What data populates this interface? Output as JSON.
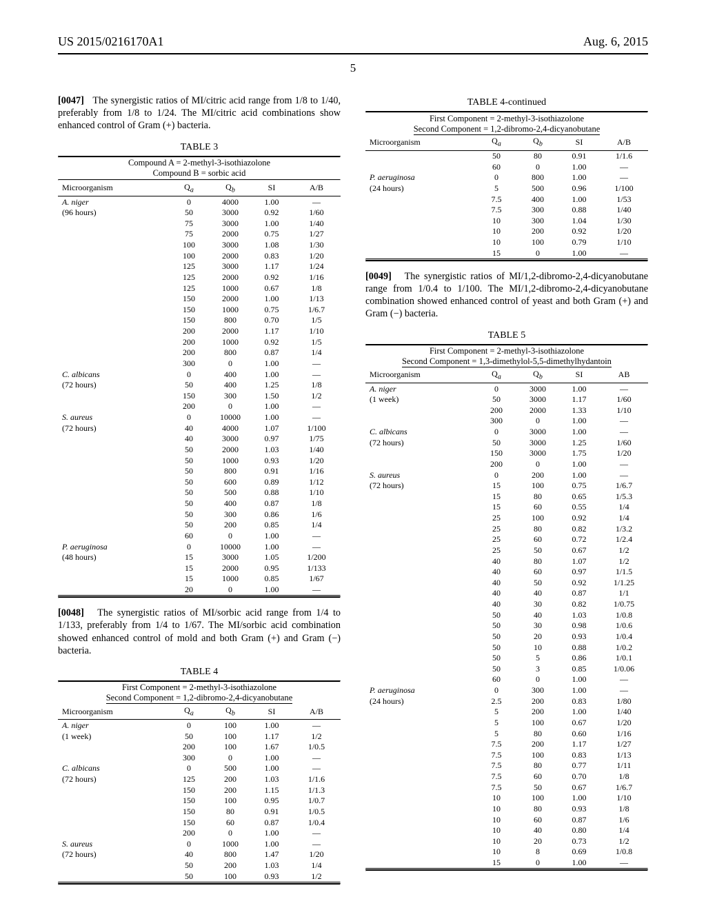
{
  "header": {
    "left": "US 2015/0216170A1",
    "right": "Aug. 6, 2015",
    "page_number": "5"
  },
  "para47": {
    "num": "[0047]",
    "text": "The synergistic ratios of MI/citric acid range from 1/8 to 1/40, preferably from 1/8 to 1/24. The MI/citric acid combinations show enhanced control of Gram (+) bacteria."
  },
  "table3": {
    "title": "TABLE 3",
    "compA": "Compound A = 2-methyl-3-isothiazolone",
    "compB": "Compound B = sorbic acid",
    "cols": [
      "Microorganism",
      "Qₐ",
      "Q_b",
      "SI",
      "A/B"
    ],
    "groups": [
      {
        "org": "A. niger",
        "hrs": "(96 hours)",
        "rows": [
          [
            "0",
            "4000",
            "1.00",
            "—"
          ],
          [
            "50",
            "3000",
            "0.92",
            "1/60"
          ],
          [
            "75",
            "3000",
            "1.00",
            "1/40"
          ],
          [
            "75",
            "2000",
            "0.75",
            "1/27"
          ],
          [
            "100",
            "3000",
            "1.08",
            "1/30"
          ],
          [
            "100",
            "2000",
            "0.83",
            "1/20"
          ],
          [
            "125",
            "3000",
            "1.17",
            "1/24"
          ],
          [
            "125",
            "2000",
            "0.92",
            "1/16"
          ],
          [
            "125",
            "1000",
            "0.67",
            "1/8"
          ],
          [
            "150",
            "2000",
            "1.00",
            "1/13"
          ],
          [
            "150",
            "1000",
            "0.75",
            "1/6.7"
          ],
          [
            "150",
            "800",
            "0.70",
            "1/5"
          ],
          [
            "200",
            "2000",
            "1.17",
            "1/10"
          ],
          [
            "200",
            "1000",
            "0.92",
            "1/5"
          ],
          [
            "200",
            "800",
            "0.87",
            "1/4"
          ],
          [
            "300",
            "0",
            "1.00",
            "—"
          ]
        ]
      },
      {
        "org": "C. albicans",
        "hrs": "(72 hours)",
        "rows": [
          [
            "0",
            "400",
            "1.00",
            "—"
          ],
          [
            "50",
            "400",
            "1.25",
            "1/8"
          ],
          [
            "150",
            "300",
            "1.50",
            "1/2"
          ],
          [
            "200",
            "0",
            "1.00",
            "—"
          ]
        ]
      },
      {
        "org": "S. aureus",
        "hrs": "(72 hours)",
        "rows": [
          [
            "0",
            "10000",
            "1.00",
            "—"
          ],
          [
            "40",
            "4000",
            "1.07",
            "1/100"
          ],
          [
            "40",
            "3000",
            "0.97",
            "1/75"
          ],
          [
            "50",
            "2000",
            "1.03",
            "1/40"
          ],
          [
            "50",
            "1000",
            "0.93",
            "1/20"
          ],
          [
            "50",
            "800",
            "0.91",
            "1/16"
          ],
          [
            "50",
            "600",
            "0.89",
            "1/12"
          ],
          [
            "50",
            "500",
            "0.88",
            "1/10"
          ],
          [
            "50",
            "400",
            "0.87",
            "1/8"
          ],
          [
            "50",
            "300",
            "0.86",
            "1/6"
          ],
          [
            "50",
            "200",
            "0.85",
            "1/4"
          ],
          [
            "60",
            "0",
            "1.00",
            "—"
          ]
        ]
      },
      {
        "org": "P. aeruginosa",
        "hrs": "(48 hours)",
        "rows": [
          [
            "0",
            "10000",
            "1.00",
            "—"
          ],
          [
            "15",
            "3000",
            "1.05",
            "1/200"
          ],
          [
            "15",
            "2000",
            "0.95",
            "1/133"
          ],
          [
            "15",
            "1000",
            "0.85",
            "1/67"
          ],
          [
            "20",
            "0",
            "1.00",
            "—"
          ]
        ]
      }
    ]
  },
  "para48": {
    "num": "[0048]",
    "text": "The synergistic ratios of MI/sorbic acid range from 1/4 to 1/133, preferably from 1/4 to 1/67. The MI/sorbic acid combination showed enhanced control of mold and both Gram (+) and Gram (−) bacteria."
  },
  "table4": {
    "title": "TABLE 4",
    "compA": "First Component = 2-methyl-3-isothiazolone",
    "compB": "Second Component = 1,2-dibromo-2,4-dicyanobutane",
    "cols": [
      "Microorganism",
      "Qₐ",
      "Q_b",
      "SI",
      "A/B"
    ],
    "groups": [
      {
        "org": "A. niger",
        "hrs": "(1 week)",
        "rows": [
          [
            "0",
            "100",
            "1.00",
            "—"
          ],
          [
            "50",
            "100",
            "1.17",
            "1/2"
          ],
          [
            "200",
            "100",
            "1.67",
            "1/0.5"
          ],
          [
            "300",
            "0",
            "1.00",
            "—"
          ]
        ]
      },
      {
        "org": "C. albicans",
        "hrs": "(72 hours)",
        "rows": [
          [
            "0",
            "500",
            "1.00",
            "—"
          ],
          [
            "125",
            "200",
            "1.03",
            "1/1.6"
          ],
          [
            "150",
            "200",
            "1.15",
            "1/1.3"
          ],
          [
            "150",
            "100",
            "0.95",
            "1/0.7"
          ],
          [
            "150",
            "80",
            "0.91",
            "1/0.5"
          ],
          [
            "150",
            "60",
            "0.87",
            "1/0.4"
          ],
          [
            "200",
            "0",
            "1.00",
            "—"
          ]
        ]
      },
      {
        "org": "S. aureus",
        "hrs": "(72 hours)",
        "rows": [
          [
            "0",
            "1000",
            "1.00",
            "—"
          ],
          [
            "40",
            "800",
            "1.47",
            "1/20"
          ],
          [
            "50",
            "200",
            "1.03",
            "1/4"
          ],
          [
            "50",
            "100",
            "0.93",
            "1/2"
          ]
        ]
      }
    ]
  },
  "table4cont": {
    "title": "TABLE 4-continued",
    "compA": "First Component = 2-methyl-3-isothiazolone",
    "compB": "Second Component = 1,2-dibromo-2,4-dicyanobutane",
    "cols": [
      "Microorganism",
      "Qₐ",
      "Q_b",
      "SI",
      "A/B"
    ],
    "groups": [
      {
        "org": "",
        "hrs": "",
        "rows": [
          [
            "50",
            "80",
            "0.91",
            "1/1.6"
          ],
          [
            "60",
            "0",
            "1.00",
            "—"
          ]
        ]
      },
      {
        "org": "P. aeruginosa",
        "hrs": "(24 hours)",
        "rows": [
          [
            "0",
            "800",
            "1.00",
            "—"
          ],
          [
            "5",
            "500",
            "0.96",
            "1/100"
          ],
          [
            "7.5",
            "400",
            "1.00",
            "1/53"
          ],
          [
            "7.5",
            "300",
            "0.88",
            "1/40"
          ],
          [
            "10",
            "300",
            "1.04",
            "1/30"
          ],
          [
            "10",
            "200",
            "0.92",
            "1/20"
          ],
          [
            "10",
            "100",
            "0.79",
            "1/10"
          ],
          [
            "15",
            "0",
            "1.00",
            "—"
          ]
        ]
      }
    ]
  },
  "para49": {
    "num": "[0049]",
    "text": "The synergistic ratios of MI/1,2-dibromo-2,4-dicyanobutane range from 1/0.4 to 1/100. The MI/1,2-dibromo-2,4-dicyanobutane combination showed enhanced control of yeast and both Gram (+) and Gram (−) bacteria."
  },
  "table5": {
    "title": "TABLE 5",
    "compA": "First Component = 2-methyl-3-isothiazolone",
    "compB": "Second Component = 1,3-dimethylol-5,5-dimethylhydantoin",
    "cols": [
      "Microorganism",
      "Qₐ",
      "Q_b",
      "SI",
      "AB"
    ],
    "groups": [
      {
        "org": "A. niger",
        "hrs": "(1 week)",
        "rows": [
          [
            "0",
            "3000",
            "1.00",
            "—"
          ],
          [
            "50",
            "3000",
            "1.17",
            "1/60"
          ],
          [
            "200",
            "2000",
            "1.33",
            "1/10"
          ],
          [
            "300",
            "0",
            "1.00",
            "—"
          ]
        ]
      },
      {
        "org": "C. albicans",
        "hrs": "(72 hours)",
        "rows": [
          [
            "0",
            "3000",
            "1.00",
            "—"
          ],
          [
            "50",
            "3000",
            "1.25",
            "1/60"
          ],
          [
            "150",
            "3000",
            "1.75",
            "1/20"
          ],
          [
            "200",
            "0",
            "1.00",
            "—"
          ]
        ]
      },
      {
        "org": "S. aureus",
        "hrs": "(72 hours)",
        "rows": [
          [
            "0",
            "200",
            "1.00",
            "—"
          ],
          [
            "15",
            "100",
            "0.75",
            "1/6.7"
          ],
          [
            "15",
            "80",
            "0.65",
            "1/5.3"
          ],
          [
            "15",
            "60",
            "0.55",
            "1/4"
          ],
          [
            "25",
            "100",
            "0.92",
            "1/4"
          ],
          [
            "25",
            "80",
            "0.82",
            "1/3.2"
          ],
          [
            "25",
            "60",
            "0.72",
            "1/2.4"
          ],
          [
            "25",
            "50",
            "0.67",
            "1/2"
          ],
          [
            "40",
            "80",
            "1.07",
            "1/2"
          ],
          [
            "40",
            "60",
            "0.97",
            "1/1.5"
          ],
          [
            "40",
            "50",
            "0.92",
            "1/1.25"
          ],
          [
            "40",
            "40",
            "0.87",
            "1/1"
          ],
          [
            "40",
            "30",
            "0.82",
            "1/0.75"
          ],
          [
            "50",
            "40",
            "1.03",
            "1/0.8"
          ],
          [
            "50",
            "30",
            "0.98",
            "1/0.6"
          ],
          [
            "50",
            "20",
            "0.93",
            "1/0.4"
          ],
          [
            "50",
            "10",
            "0.88",
            "1/0.2"
          ],
          [
            "50",
            "5",
            "0.86",
            "1/0.1"
          ],
          [
            "50",
            "3",
            "0.85",
            "1/0.06"
          ],
          [
            "60",
            "0",
            "1.00",
            "—"
          ]
        ]
      },
      {
        "org": "P. aeruginosa",
        "hrs": "(24 hours)",
        "rows": [
          [
            "0",
            "300",
            "1.00",
            "—"
          ],
          [
            "2.5",
            "200",
            "0.83",
            "1/80"
          ],
          [
            "5",
            "200",
            "1.00",
            "1/40"
          ],
          [
            "5",
            "100",
            "0.67",
            "1/20"
          ],
          [
            "5",
            "80",
            "0.60",
            "1/16"
          ],
          [
            "7.5",
            "200",
            "1.17",
            "1/27"
          ],
          [
            "7.5",
            "100",
            "0.83",
            "1/13"
          ],
          [
            "7.5",
            "80",
            "0.77",
            "1/11"
          ],
          [
            "7.5",
            "60",
            "0.70",
            "1/8"
          ],
          [
            "7.5",
            "50",
            "0.67",
            "1/6.7"
          ],
          [
            "10",
            "100",
            "1.00",
            "1/10"
          ],
          [
            "10",
            "80",
            "0.93",
            "1/8"
          ],
          [
            "10",
            "60",
            "0.87",
            "1/6"
          ],
          [
            "10",
            "40",
            "0.80",
            "1/4"
          ],
          [
            "10",
            "20",
            "0.73",
            "1/2"
          ],
          [
            "10",
            "8",
            "0.69",
            "1/0.8"
          ],
          [
            "15",
            "0",
            "1.00",
            "—"
          ]
        ]
      }
    ]
  }
}
